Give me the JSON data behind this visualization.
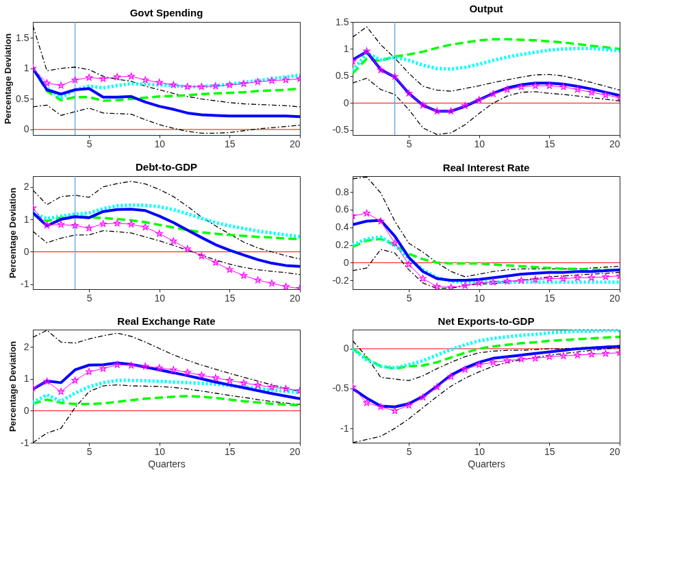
{
  "chart_data": [
    {
      "type": "line",
      "title": "Govt Spending",
      "ylabel": "Percentage Deviation",
      "x": [
        1,
        2,
        3,
        4,
        5,
        6,
        7,
        8,
        9,
        10,
        11,
        12,
        13,
        14,
        15,
        16,
        17,
        18,
        19,
        20
      ],
      "xlim": [
        1,
        20
      ],
      "xticks": [
        5,
        10,
        15,
        20
      ],
      "ylim": [
        -0.09,
        1.76
      ],
      "yticks": [
        0,
        0.5,
        1,
        1.5
      ],
      "grid": false,
      "ref_lines": [
        {
          "axis": "y",
          "value": 0,
          "color": "#ff0000"
        },
        {
          "axis": "x",
          "value": 4,
          "color": "#4a9fdc"
        }
      ],
      "series": [
        {
          "color": "#000000",
          "line_style": "dashdot",
          "values": [
            1.7,
            0.96,
            1.0,
            1.02,
            0.98,
            0.87,
            0.82,
            0.79,
            0.71,
            0.65,
            0.59,
            0.54,
            0.5,
            0.47,
            0.44,
            0.42,
            0.41,
            0.4,
            0.39,
            0.37
          ]
        },
        {
          "color": "#000000",
          "line_style": "dashdot",
          "values": [
            0.37,
            0.4,
            0.23,
            0.29,
            0.35,
            0.27,
            0.26,
            0.25,
            0.16,
            0.08,
            0.02,
            -0.03,
            -0.06,
            -0.06,
            -0.05,
            -0.02,
            0.01,
            0.03,
            0.05,
            0.07
          ]
        },
        {
          "color": "#00ff00",
          "line_style": "dashed",
          "values": [
            1.0,
            0.63,
            0.48,
            0.53,
            0.53,
            0.47,
            0.48,
            0.5,
            0.52,
            0.54,
            0.55,
            0.56,
            0.58,
            0.59,
            0.6,
            0.61,
            0.63,
            0.64,
            0.65,
            0.67
          ]
        },
        {
          "color": "#00ffff",
          "line_style": "dotted",
          "values": [
            1.0,
            0.68,
            0.52,
            0.65,
            0.71,
            0.68,
            0.72,
            0.75,
            0.74,
            0.73,
            0.72,
            0.7,
            0.7,
            0.72,
            0.74,
            0.77,
            0.8,
            0.83,
            0.86,
            0.89
          ]
        },
        {
          "color": "#0000ff",
          "line_style": "solid",
          "values": [
            1.0,
            0.65,
            0.58,
            0.65,
            0.67,
            0.53,
            0.53,
            0.54,
            0.45,
            0.38,
            0.33,
            0.27,
            0.24,
            0.23,
            0.22,
            0.22,
            0.22,
            0.22,
            0.22,
            0.21
          ]
        },
        {
          "color": "#ff00ff",
          "line_style": "solid",
          "marker": "star",
          "values": [
            1.0,
            0.76,
            0.72,
            0.81,
            0.85,
            0.83,
            0.86,
            0.87,
            0.81,
            0.77,
            0.73,
            0.7,
            0.7,
            0.71,
            0.73,
            0.75,
            0.78,
            0.8,
            0.81,
            0.83
          ]
        }
      ]
    },
    {
      "type": "line",
      "title": "Output",
      "x": [
        1,
        2,
        3,
        4,
        5,
        6,
        7,
        8,
        9,
        10,
        11,
        12,
        13,
        14,
        15,
        16,
        17,
        18,
        19,
        20
      ],
      "xlim": [
        1,
        20
      ],
      "xticks": [
        5,
        10,
        15,
        20
      ],
      "ylim": [
        -0.59,
        1.5
      ],
      "yticks": [
        -0.5,
        0,
        0.5,
        1,
        1.5
      ],
      "grid": false,
      "ref_lines": [
        {
          "axis": "y",
          "value": 0,
          "color": "#ff0000"
        },
        {
          "axis": "x",
          "value": 4,
          "color": "#4a9fdc"
        }
      ],
      "series": [
        {
          "color": "#000000",
          "line_style": "dashdot",
          "values": [
            1.22,
            1.41,
            1.08,
            0.83,
            0.55,
            0.31,
            0.24,
            0.22,
            0.27,
            0.32,
            0.38,
            0.43,
            0.48,
            0.52,
            0.53,
            0.5,
            0.44,
            0.38,
            0.31,
            0.24
          ]
        },
        {
          "color": "#000000",
          "line_style": "dashdot",
          "values": [
            0.37,
            0.46,
            0.25,
            0.16,
            -0.12,
            -0.46,
            -0.58,
            -0.55,
            -0.4,
            -0.19,
            0.0,
            0.13,
            0.2,
            0.21,
            0.18,
            0.16,
            0.13,
            0.1,
            0.07,
            0.04
          ]
        },
        {
          "color": "#00ff00",
          "line_style": "dashed",
          "values": [
            0.55,
            0.82,
            0.78,
            0.86,
            0.9,
            0.95,
            1.02,
            1.08,
            1.12,
            1.16,
            1.18,
            1.18,
            1.17,
            1.16,
            1.14,
            1.12,
            1.09,
            1.06,
            1.03,
            1.0
          ]
        },
        {
          "color": "#00ffff",
          "line_style": "dotted",
          "values": [
            0.6,
            0.92,
            0.8,
            0.85,
            0.79,
            0.7,
            0.64,
            0.63,
            0.66,
            0.72,
            0.79,
            0.85,
            0.9,
            0.94,
            0.98,
            1.0,
            1.01,
            1.01,
            0.99,
            0.97
          ]
        },
        {
          "color": "#0000ff",
          "line_style": "solid",
          "values": [
            0.8,
            0.95,
            0.62,
            0.48,
            0.18,
            -0.04,
            -0.15,
            -0.15,
            -0.06,
            0.06,
            0.18,
            0.28,
            0.34,
            0.37,
            0.37,
            0.35,
            0.31,
            0.26,
            0.2,
            0.14
          ]
        },
        {
          "color": "#ff00ff",
          "line_style": "solid",
          "marker": "star",
          "values": [
            0.77,
            0.96,
            0.61,
            0.49,
            0.18,
            -0.04,
            -0.15,
            -0.15,
            -0.05,
            0.06,
            0.17,
            0.25,
            0.3,
            0.32,
            0.32,
            0.3,
            0.25,
            0.2,
            0.15,
            0.1
          ]
        }
      ]
    },
    {
      "type": "line",
      "title": "Debt-to-GDP",
      "ylabel": "Percentage Deviation",
      "x": [
        1,
        2,
        3,
        4,
        5,
        6,
        7,
        8,
        9,
        10,
        11,
        12,
        13,
        14,
        15,
        16,
        17,
        18,
        19,
        20
      ],
      "xlim": [
        1,
        20
      ],
      "xticks": [
        5,
        10,
        15,
        20
      ],
      "ylim": [
        -1.15,
        2.33
      ],
      "yticks": [
        -1,
        0,
        1,
        2
      ],
      "grid": false,
      "ref_lines": [
        {
          "axis": "y",
          "value": 0,
          "color": "#ff0000"
        },
        {
          "axis": "x",
          "value": 4,
          "color": "#4a9fdc"
        }
      ],
      "series": [
        {
          "color": "#000000",
          "line_style": "dashdot",
          "values": [
            1.9,
            1.45,
            1.7,
            1.74,
            1.68,
            2.0,
            2.1,
            2.17,
            2.09,
            1.92,
            1.7,
            1.4,
            1.07,
            0.8,
            0.55,
            0.3,
            0.12,
            0.0,
            -0.12,
            -0.22
          ]
        },
        {
          "color": "#000000",
          "line_style": "dashdot",
          "values": [
            0.63,
            0.28,
            0.42,
            0.52,
            0.52,
            0.65,
            0.62,
            0.58,
            0.46,
            0.34,
            0.2,
            0.05,
            -0.1,
            -0.25,
            -0.38,
            -0.48,
            -0.55,
            -0.6,
            -0.64,
            -0.7
          ]
        },
        {
          "color": "#00ff00",
          "line_style": "dashed",
          "values": [
            1.15,
            0.95,
            1.05,
            1.1,
            1.07,
            1.04,
            1.01,
            0.97,
            0.91,
            0.83,
            0.75,
            0.67,
            0.6,
            0.56,
            0.52,
            0.49,
            0.46,
            0.44,
            0.41,
            0.39
          ]
        },
        {
          "color": "#00ffff",
          "line_style": "dotted",
          "values": [
            1.2,
            1.02,
            1.1,
            1.16,
            1.2,
            1.33,
            1.42,
            1.44,
            1.43,
            1.39,
            1.3,
            1.17,
            1.03,
            0.9,
            0.8,
            0.72,
            0.64,
            0.58,
            0.52,
            0.47
          ]
        },
        {
          "color": "#0000ff",
          "line_style": "solid",
          "values": [
            1.2,
            0.8,
            1.0,
            1.08,
            1.05,
            1.24,
            1.3,
            1.31,
            1.27,
            1.1,
            0.9,
            0.67,
            0.44,
            0.22,
            0.05,
            -0.1,
            -0.24,
            -0.35,
            -0.42,
            -0.45
          ]
        },
        {
          "color": "#ff00ff",
          "line_style": "solid",
          "marker": "star",
          "values": [
            1.35,
            0.82,
            0.84,
            0.81,
            0.73,
            0.86,
            0.88,
            0.85,
            0.76,
            0.56,
            0.33,
            0.09,
            -0.13,
            -0.33,
            -0.55,
            -0.73,
            -0.87,
            -0.97,
            -1.07,
            -1.13
          ]
        }
      ]
    },
    {
      "type": "line",
      "title": "Real Interest Rate",
      "x": [
        1,
        2,
        3,
        4,
        5,
        6,
        7,
        8,
        9,
        10,
        11,
        12,
        13,
        14,
        15,
        16,
        17,
        18,
        19,
        20
      ],
      "xlim": [
        1,
        20
      ],
      "xticks": [
        5,
        10,
        15,
        20
      ],
      "ylim": [
        -0.3,
        0.98
      ],
      "yticks": [
        -0.2,
        0,
        0.2,
        0.4,
        0.6,
        0.8
      ],
      "grid": false,
      "ref_lines": [
        {
          "axis": "y",
          "value": 0,
          "color": "#ff0000"
        }
      ],
      "series": [
        {
          "color": "#000000",
          "line_style": "dashdot",
          "values": [
            0.95,
            0.97,
            0.79,
            0.47,
            0.22,
            0.12,
            0.0,
            -0.1,
            -0.16,
            -0.13,
            -0.1,
            -0.08,
            -0.07,
            -0.07,
            -0.07,
            -0.07,
            -0.07,
            -0.06,
            -0.05,
            -0.04
          ]
        },
        {
          "color": "#000000",
          "line_style": "dashdot",
          "values": [
            -0.09,
            -0.06,
            0.15,
            0.11,
            -0.08,
            -0.23,
            -0.29,
            -0.29,
            -0.26,
            -0.24,
            -0.24,
            -0.22,
            -0.2,
            -0.18,
            -0.16,
            -0.15,
            -0.14,
            -0.13,
            -0.12,
            -0.11
          ]
        },
        {
          "color": "#00ff00",
          "line_style": "dashed",
          "values": [
            0.18,
            0.25,
            0.27,
            0.2,
            0.1,
            0.04,
            0.0,
            -0.01,
            -0.01,
            -0.01,
            -0.02,
            -0.03,
            -0.04,
            -0.05,
            -0.06,
            -0.07,
            -0.07,
            -0.08,
            -0.08,
            -0.09
          ]
        },
        {
          "color": "#00ffff",
          "line_style": "dotted",
          "values": [
            0.2,
            0.27,
            0.29,
            0.2,
            0.05,
            -0.08,
            -0.17,
            -0.21,
            -0.22,
            -0.22,
            -0.22,
            -0.22,
            -0.22,
            -0.22,
            -0.22,
            -0.22,
            -0.22,
            -0.22,
            -0.22,
            -0.22
          ]
        },
        {
          "color": "#0000ff",
          "line_style": "solid",
          "values": [
            0.43,
            0.47,
            0.48,
            0.3,
            0.06,
            -0.1,
            -0.18,
            -0.2,
            -0.2,
            -0.19,
            -0.17,
            -0.15,
            -0.13,
            -0.12,
            -0.11,
            -0.11,
            -0.1,
            -0.1,
            -0.09,
            -0.08
          ]
        },
        {
          "color": "#ff00ff",
          "line_style": "solid",
          "marker": "star",
          "values": [
            0.53,
            0.56,
            0.47,
            0.22,
            -0.02,
            -0.18,
            -0.27,
            -0.28,
            -0.26,
            -0.23,
            -0.22,
            -0.21,
            -0.2,
            -0.19,
            -0.18,
            -0.18,
            -0.17,
            -0.17,
            -0.16,
            -0.15
          ]
        }
      ]
    },
    {
      "type": "line",
      "title": "Real Exchange Rate",
      "ylabel": "Percentage Deviation",
      "xlabel": "Quarters",
      "x": [
        1,
        2,
        3,
        4,
        5,
        6,
        7,
        8,
        9,
        10,
        11,
        12,
        13,
        14,
        15,
        16,
        17,
        18,
        19,
        20
      ],
      "xlim": [
        1,
        20
      ],
      "xticks": [
        5,
        10,
        15,
        20
      ],
      "ylim": [
        -1,
        2.54
      ],
      "yticks": [
        -1,
        0,
        1,
        2
      ],
      "grid": false,
      "ref_lines": [
        {
          "axis": "y",
          "value": 0,
          "color": "#ff0000"
        }
      ],
      "series": [
        {
          "color": "#000000",
          "line_style": "dashdot",
          "values": [
            2.3,
            2.52,
            2.15,
            2.12,
            2.25,
            2.35,
            2.43,
            2.33,
            2.15,
            1.95,
            1.75,
            1.58,
            1.43,
            1.3,
            1.17,
            1.05,
            0.93,
            0.81,
            0.7,
            0.6
          ]
        },
        {
          "color": "#000000",
          "line_style": "dashdot",
          "values": [
            -1.0,
            -0.7,
            -0.55,
            0.1,
            0.6,
            0.78,
            0.81,
            0.78,
            0.77,
            0.76,
            0.73,
            0.68,
            0.62,
            0.55,
            0.48,
            0.42,
            0.35,
            0.29,
            0.24,
            0.2
          ]
        },
        {
          "color": "#00ff00",
          "line_style": "dashed",
          "values": [
            0.22,
            0.35,
            0.25,
            0.21,
            0.21,
            0.23,
            0.28,
            0.33,
            0.38,
            0.41,
            0.44,
            0.46,
            0.44,
            0.4,
            0.35,
            0.3,
            0.26,
            0.22,
            0.19,
            0.17
          ]
        },
        {
          "color": "#00ffff",
          "line_style": "dotted",
          "values": [
            0.25,
            0.5,
            0.3,
            0.55,
            0.75,
            0.88,
            0.95,
            0.95,
            0.94,
            0.92,
            0.9,
            0.88,
            0.86,
            0.83,
            0.79,
            0.74,
            0.7,
            0.65,
            0.61,
            0.57
          ]
        },
        {
          "color": "#0000ff",
          "line_style": "solid",
          "values": [
            0.68,
            0.93,
            0.88,
            1.28,
            1.43,
            1.44,
            1.5,
            1.45,
            1.37,
            1.28,
            1.19,
            1.1,
            1.0,
            0.9,
            0.81,
            0.72,
            0.63,
            0.54,
            0.46,
            0.38
          ]
        },
        {
          "color": "#ff00ff",
          "line_style": "solid",
          "marker": "star",
          "values": [
            0.71,
            0.92,
            0.6,
            0.95,
            1.22,
            1.32,
            1.44,
            1.42,
            1.39,
            1.34,
            1.28,
            1.2,
            1.11,
            1.03,
            0.95,
            0.87,
            0.8,
            0.74,
            0.69,
            0.63
          ]
        }
      ]
    },
    {
      "type": "line",
      "title": "Net Exports-to-GDP",
      "xlabel": "Quarters",
      "x": [
        1,
        2,
        3,
        4,
        5,
        6,
        7,
        8,
        9,
        10,
        11,
        12,
        13,
        14,
        15,
        16,
        17,
        18,
        19,
        20
      ],
      "xlim": [
        1,
        20
      ],
      "xticks": [
        5,
        10,
        15,
        20
      ],
      "ylim": [
        -1.18,
        0.24
      ],
      "yticks": [
        -1,
        -0.5,
        0
      ],
      "grid": false,
      "ref_lines": [
        {
          "axis": "y",
          "value": 0,
          "color": "#ff0000"
        }
      ],
      "series": [
        {
          "color": "#000000",
          "line_style": "dashdot",
          "values": [
            0.1,
            -0.1,
            -0.36,
            -0.38,
            -0.4,
            -0.34,
            -0.25,
            -0.17,
            -0.1,
            -0.05,
            -0.03,
            -0.02,
            -0.02,
            -0.01,
            0.0,
            0.0,
            0.01,
            0.02,
            0.03,
            0.04
          ]
        },
        {
          "color": "#000000",
          "line_style": "dashdot",
          "values": [
            -1.18,
            -1.14,
            -1.1,
            -1.0,
            -0.88,
            -0.74,
            -0.6,
            -0.47,
            -0.37,
            -0.29,
            -0.22,
            -0.17,
            -0.14,
            -0.11,
            -0.08,
            -0.06,
            -0.04,
            -0.02,
            0.0,
            0.01
          ]
        },
        {
          "color": "#00ff00",
          "line_style": "dashed",
          "values": [
            0.0,
            -0.12,
            -0.22,
            -0.25,
            -0.22,
            -0.21,
            -0.17,
            -0.11,
            -0.05,
            0.0,
            0.03,
            0.05,
            0.07,
            0.08,
            0.1,
            0.11,
            0.12,
            0.13,
            0.14,
            0.15
          ]
        },
        {
          "color": "#00ffff",
          "line_style": "dotted",
          "values": [
            0.0,
            -0.14,
            -0.22,
            -0.24,
            -0.2,
            -0.15,
            -0.08,
            -0.01,
            0.05,
            0.1,
            0.13,
            0.15,
            0.17,
            0.18,
            0.2,
            0.21,
            0.22,
            0.22,
            0.23,
            0.23
          ]
        },
        {
          "color": "#0000ff",
          "line_style": "solid",
          "values": [
            -0.5,
            -0.62,
            -0.72,
            -0.73,
            -0.69,
            -0.6,
            -0.47,
            -0.33,
            -0.24,
            -0.17,
            -0.12,
            -0.1,
            -0.08,
            -0.06,
            -0.04,
            -0.02,
            0.0,
            0.01,
            0.02,
            0.03
          ]
        },
        {
          "color": "#ff00ff",
          "line_style": "solid",
          "marker": "star",
          "values": [
            -0.48,
            -0.68,
            -0.73,
            -0.78,
            -0.71,
            -0.61,
            -0.48,
            -0.35,
            -0.26,
            -0.2,
            -0.17,
            -0.15,
            -0.13,
            -0.12,
            -0.1,
            -0.09,
            -0.08,
            -0.07,
            -0.06,
            -0.05
          ]
        }
      ]
    }
  ]
}
